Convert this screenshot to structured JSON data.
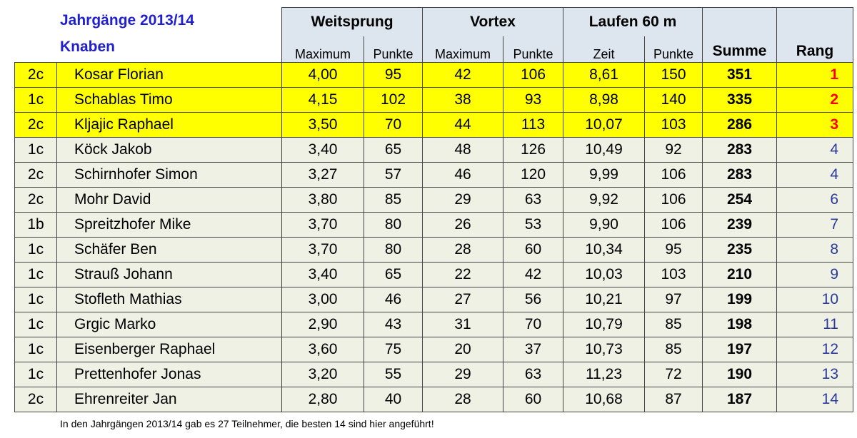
{
  "header": {
    "title_line1": "Jahrgänge 2013/14",
    "title_line2": "Knaben",
    "groups": [
      "Weitsprung",
      "Vortex",
      "Laufen 60 m"
    ],
    "subcolumns": [
      "Maximum",
      "Punkte",
      "Maximum",
      "Punkte",
      "Zeit",
      "Punkte"
    ],
    "sum_label": "Summe",
    "rank_label": "Rang"
  },
  "rows": [
    {
      "klasse": "2c",
      "name": "Kosar Florian",
      "ws_max": "4,00",
      "ws_pkt": "95",
      "vx_max": "42",
      "vx_pkt": "106",
      "lf_zeit": "8,61",
      "lf_pkt": "150",
      "summe": "351",
      "rang": "1",
      "highlight": true
    },
    {
      "klasse": "1c",
      "name": "Schablas Timo",
      "ws_max": "4,15",
      "ws_pkt": "102",
      "vx_max": "38",
      "vx_pkt": "93",
      "lf_zeit": "8,98",
      "lf_pkt": "140",
      "summe": "335",
      "rang": "2",
      "highlight": true
    },
    {
      "klasse": "2c",
      "name": "Kljajic Raphael",
      "ws_max": "3,50",
      "ws_pkt": "70",
      "vx_max": "44",
      "vx_pkt": "113",
      "lf_zeit": "10,07",
      "lf_pkt": "103",
      "summe": "286",
      "rang": "3",
      "highlight": true
    },
    {
      "klasse": "1c",
      "name": "Köck Jakob",
      "ws_max": "3,40",
      "ws_pkt": "65",
      "vx_max": "48",
      "vx_pkt": "126",
      "lf_zeit": "10,49",
      "lf_pkt": "92",
      "summe": "283",
      "rang": "4",
      "highlight": false
    },
    {
      "klasse": "2c",
      "name": "Schirnhofer Simon",
      "ws_max": "3,27",
      "ws_pkt": "57",
      "vx_max": "46",
      "vx_pkt": "120",
      "lf_zeit": "9,99",
      "lf_pkt": "106",
      "summe": "283",
      "rang": "4",
      "highlight": false
    },
    {
      "klasse": "2c",
      "name": "Mohr David",
      "ws_max": "3,80",
      "ws_pkt": "85",
      "vx_max": "29",
      "vx_pkt": "63",
      "lf_zeit": "9,92",
      "lf_pkt": "106",
      "summe": "254",
      "rang": "6",
      "highlight": false
    },
    {
      "klasse": "1b",
      "name": "Spreitzhofer Mike",
      "ws_max": "3,70",
      "ws_pkt": "80",
      "vx_max": "26",
      "vx_pkt": "53",
      "lf_zeit": "9,90",
      "lf_pkt": "106",
      "summe": "239",
      "rang": "7",
      "highlight": false
    },
    {
      "klasse": "1c",
      "name": "Schäfer Ben",
      "ws_max": "3,70",
      "ws_pkt": "80",
      "vx_max": "28",
      "vx_pkt": "60",
      "lf_zeit": "10,34",
      "lf_pkt": "95",
      "summe": "235",
      "rang": "8",
      "highlight": false
    },
    {
      "klasse": "1c",
      "name": "Strauß Johann",
      "ws_max": "3,40",
      "ws_pkt": "65",
      "vx_max": "22",
      "vx_pkt": "42",
      "lf_zeit": "10,03",
      "lf_pkt": "103",
      "summe": "210",
      "rang": "9",
      "highlight": false
    },
    {
      "klasse": "1c",
      "name": "Stofleth Mathias",
      "ws_max": "3,00",
      "ws_pkt": "46",
      "vx_max": "27",
      "vx_pkt": "56",
      "lf_zeit": "10,21",
      "lf_pkt": "97",
      "summe": "199",
      "rang": "10",
      "highlight": false
    },
    {
      "klasse": "1c",
      "name": "Grgic Marko",
      "ws_max": "2,90",
      "ws_pkt": "43",
      "vx_max": "31",
      "vx_pkt": "70",
      "lf_zeit": "10,79",
      "lf_pkt": "85",
      "summe": "198",
      "rang": "11",
      "highlight": false
    },
    {
      "klasse": "1c",
      "name": "Eisenberger Raphael",
      "ws_max": "3,60",
      "ws_pkt": "75",
      "vx_max": "20",
      "vx_pkt": "37",
      "lf_zeit": "10,73",
      "lf_pkt": "85",
      "summe": "197",
      "rang": "12",
      "highlight": false
    },
    {
      "klasse": "1c",
      "name": "Prettenhofer Jonas",
      "ws_max": "3,20",
      "ws_pkt": "55",
      "vx_max": "29",
      "vx_pkt": "63",
      "lf_zeit": "11,23",
      "lf_pkt": "72",
      "summe": "190",
      "rang": "13",
      "highlight": false
    },
    {
      "klasse": "2c",
      "name": "Ehrenreiter Jan",
      "ws_max": "2,80",
      "ws_pkt": "40",
      "vx_max": "28",
      "vx_pkt": "60",
      "lf_zeit": "10,68",
      "lf_pkt": "87",
      "summe": "187",
      "rang": "14",
      "highlight": false
    }
  ],
  "footnote": "In den Jahrgängen 2013/14 gab es 27 Teilnehmer, die besten 14 sind hier angeführt!",
  "colors": {
    "title": "#1f1fd0",
    "highlight_row": "#ffff00",
    "normal_row": "#eef1e4",
    "header_bg": "#dde5ee",
    "top_rank": "#ff0000",
    "rank": "#2b3a9e"
  }
}
